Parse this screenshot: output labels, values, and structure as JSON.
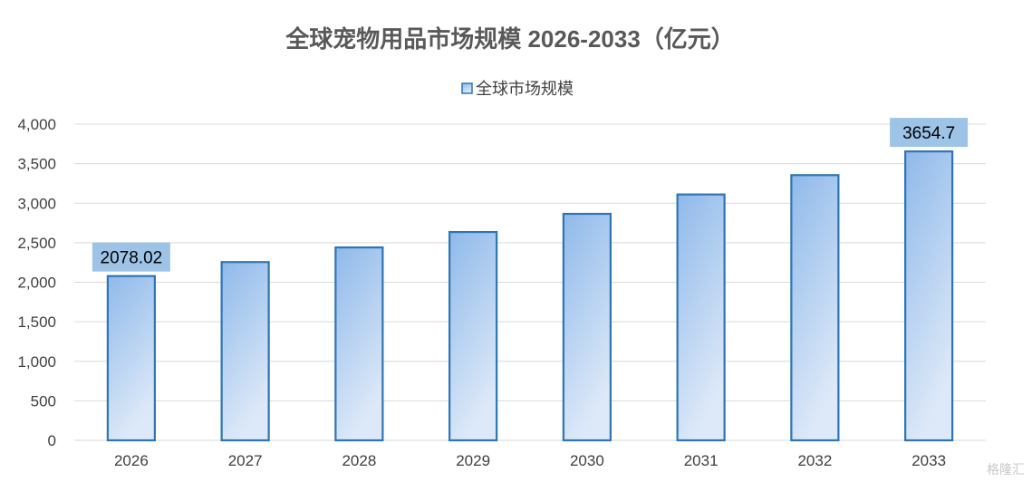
{
  "chart_data": {
    "type": "bar",
    "title": "全球宠物用品市场规模 2026-2033（亿元）",
    "xlabel": "",
    "ylabel": "",
    "categories": [
      "2026",
      "2027",
      "2028",
      "2029",
      "2030",
      "2031",
      "2032",
      "2033"
    ],
    "series": [
      {
        "name": "全球市场规模",
        "values": [
          2078.02,
          2255,
          2440,
          2635,
          2865,
          3110,
          3355,
          3654.7
        ]
      }
    ],
    "data_labels": [
      {
        "category": "2026",
        "text": "2078.02"
      },
      {
        "category": "2033",
        "text": "3654.7"
      }
    ],
    "ylim": [
      0,
      4000
    ],
    "yticks": [
      0,
      500,
      1000,
      1500,
      2000,
      2500,
      3000,
      3500,
      4000
    ],
    "ytick_labels": [
      "0",
      "500",
      "1,000",
      "1,500",
      "2,000",
      "2,500",
      "3,000",
      "3,500",
      "4,000"
    ],
    "grid": true,
    "legend_position": "top",
    "colors": {
      "bar_fill_top": "#8fb9ea",
      "bar_fill_bottom": "#dde9f8",
      "bar_border": "#2e75b6",
      "label_bg": "#9dc3e6"
    }
  },
  "watermark": "格隆汇"
}
